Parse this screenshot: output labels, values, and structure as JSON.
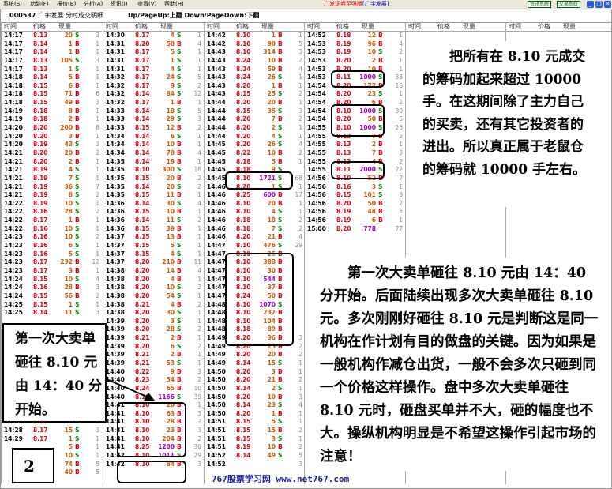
{
  "menu": [
    "系统(S)",
    "功能(F)",
    "报价(B)",
    "分析(A)",
    "资讯(I)",
    "查看(V)",
    "帮助(H)"
  ],
  "app_title": "广发证券至强版",
  "app_stock": "[广宇发展]",
  "sys_buttons": [
    "资讯系统",
    "交易系统"
  ],
  "window_buttons": {
    "minimize": "_",
    "restore": "❐",
    "close": "✕"
  },
  "title": {
    "code": "000537",
    "name": "广宇发展",
    "view": "分时成交明细",
    "hint": "Up/PageUp:上翻 Down/PageDown:下翻"
  },
  "column_headers": {
    "time": "时间",
    "price": "价格",
    "volume": "现量"
  },
  "colors": {
    "price": "#e00010",
    "buy": "#e00010",
    "sell": "#008800",
    "volume": "#d05800",
    "large_volume": "#9900cc"
  },
  "columns": [
    [
      [
        "14:17",
        "8.13",
        "20",
        "S",
        "3"
      ],
      [
        "14:17",
        "8.14",
        "1",
        "B",
        "1"
      ],
      [
        "14:17",
        "8.14",
        "1",
        "B",
        "1"
      ],
      [
        "14:17",
        "8.13",
        "105",
        "S",
        "3"
      ],
      [
        "14:17",
        "8.13",
        "1",
        "S",
        "1"
      ],
      [
        "14:18",
        "8.14",
        "5",
        "B",
        "1"
      ],
      [
        "14:18",
        "8.15",
        "6",
        "B",
        "1"
      ],
      [
        "14:18",
        "8.15",
        "71",
        "B",
        "6"
      ],
      [
        "14:18",
        "8.15",
        "49",
        "B",
        "3"
      ],
      [
        "14:19",
        "8.18",
        "8",
        "B",
        "1"
      ],
      [
        "14:19",
        "8.18",
        "2",
        "B",
        "1"
      ],
      [
        "14:20",
        "8.20",
        "200",
        "B",
        "8"
      ],
      [
        "14:20",
        "8.20",
        "3",
        "B",
        "1"
      ],
      [
        "14:20",
        "8.19",
        "43",
        "S",
        "3"
      ],
      [
        "14:21",
        "8.20",
        "20",
        "B",
        "2"
      ],
      [
        "14:21",
        "8.20",
        "2",
        "B",
        "1"
      ],
      [
        "14:21",
        "8.19",
        "4",
        "S",
        "1"
      ],
      [
        "14:21",
        "8.19",
        "7",
        "S",
        "1"
      ],
      [
        "14:21",
        "8.19",
        "36",
        "S",
        "7"
      ],
      [
        "14:21",
        "8.19",
        "8",
        "S",
        "2"
      ],
      [
        "14:22",
        "8.19",
        "10",
        "S",
        "1"
      ],
      [
        "14:22",
        "8.16",
        "28",
        "S",
        "2"
      ],
      [
        "14:22",
        "8.17",
        "1",
        "B",
        "1"
      ],
      [
        "14:22",
        "8.16",
        "10",
        "S",
        "1"
      ],
      [
        "14:23",
        "8.16",
        "10",
        "S",
        "2"
      ],
      [
        "14:23",
        "8.16",
        "6",
        "S",
        "1"
      ],
      [
        "14:23",
        "8.16",
        "5",
        "S",
        "1"
      ],
      [
        "14:23",
        "8.17",
        "232",
        "B",
        "12"
      ],
      [
        "14:23",
        "8.17",
        "3",
        "B",
        "1"
      ],
      [
        "14:24",
        "8.15",
        "10",
        "S",
        "4"
      ],
      [
        "14:24",
        "8.16",
        "28",
        "B",
        "3"
      ],
      [
        "14:24",
        "8.15",
        "56",
        "B",
        "2"
      ],
      [
        "14:25",
        "8.15",
        "1",
        "S",
        "1"
      ],
      [
        "14:25",
        "8.14",
        "11",
        "S",
        "3"
      ],
      null,
      null,
      null,
      null,
      null,
      null,
      null,
      null,
      null,
      null,
      null,
      null,
      [
        "14:28",
        "8.17",
        "4",
        "S",
        "2"
      ],
      [
        "14:28",
        "8.17",
        "15",
        "S",
        "3"
      ],
      [
        "14:29",
        "8.17",
        "1",
        "S",
        "1"
      ],
      [
        "",
        "",
        "5",
        "B",
        "1"
      ],
      [
        "",
        "",
        "10",
        "S",
        "1"
      ],
      [
        "",
        "",
        "74",
        "B",
        "5"
      ],
      [
        "",
        "",
        "40",
        "B",
        "5"
      ]
    ],
    [
      [
        "14:30",
        "8.17",
        "4",
        "S",
        "1"
      ],
      [
        "14:31",
        "8.20",
        "50",
        "B",
        "4"
      ],
      [
        "14:31",
        "8.17",
        "5",
        "S",
        "1"
      ],
      [
        "14:31",
        "8.17",
        "1",
        "S",
        "1"
      ],
      [
        "14:31",
        "8.17",
        "4",
        "S",
        "1"
      ],
      [
        "14:32",
        "8.17",
        "24",
        "S",
        "5"
      ],
      [
        "14:32",
        "8.17",
        "9",
        "S",
        "2"
      ],
      [
        "14:32",
        "8.14",
        "84",
        "S",
        "12"
      ],
      [
        "14:32",
        "8.17",
        "1",
        "B",
        "1"
      ],
      [
        "14:33",
        "8.14",
        "18",
        "S",
        "5"
      ],
      [
        "14:33",
        "8.14",
        "29",
        "S",
        "3"
      ],
      [
        "14:33",
        "8.15",
        "12",
        "B",
        "2"
      ],
      [
        "14:34",
        "8.14",
        "6",
        "S",
        "1"
      ],
      [
        "14:34",
        "8.14",
        "10",
        "B",
        "1"
      ],
      [
        "14:34",
        "8.14",
        "78",
        "B",
        "4"
      ],
      [
        "14:35",
        "8.14",
        "19",
        "B",
        "1"
      ],
      [
        "14:35",
        "8.10",
        "300",
        "S",
        "18"
      ],
      [
        "14:35",
        "8.15",
        "20",
        "B",
        "2"
      ],
      [
        "14:35",
        "8.14",
        "20",
        "S",
        "2"
      ],
      [
        "14:35",
        "8.15",
        "11",
        "B",
        "1"
      ],
      [
        "14:36",
        "8.14",
        "30",
        "S",
        "4"
      ],
      [
        "14:36",
        "8.15",
        "10",
        "B",
        "1"
      ],
      [
        "14:36",
        "8.14",
        "11",
        "S",
        "2"
      ],
      [
        "14:36",
        "8.15",
        "39",
        "B",
        "1"
      ],
      [
        "14:37",
        "8.15",
        "13",
        "B",
        "1"
      ],
      [
        "14:37",
        "8.15",
        "5",
        "S",
        "1"
      ],
      [
        "14:37",
        "8.15",
        "4",
        "S",
        "1"
      ],
      [
        "14:37",
        "8.20",
        "210",
        "B",
        "11"
      ],
      [
        "14:38",
        "8.20",
        "14",
        "B",
        "4"
      ],
      [
        "14:38",
        "8.20",
        "4",
        "B",
        "1"
      ],
      [
        "14:38",
        "8.20",
        "10",
        "S",
        "2"
      ],
      [
        "14:38",
        "8.20",
        "54",
        "S",
        "1"
      ],
      [
        "14:38",
        "8.21",
        "4",
        "B",
        "2"
      ],
      [
        "14:38",
        "8.20",
        "30",
        "S",
        "1"
      ],
      [
        "14:39",
        "8.20",
        "3",
        "S",
        "1"
      ],
      [
        "14:39",
        "8.20",
        "28",
        "S",
        "2"
      ],
      [
        "14:39",
        "8.21",
        "2",
        "B",
        "1"
      ],
      [
        "14:39",
        "8.20",
        "6",
        "S",
        "2"
      ],
      [
        "14:39",
        "8.21",
        "2",
        "B",
        "1"
      ],
      [
        "14:39",
        "8.21",
        "53",
        "S",
        "1"
      ],
      [
        "14:40",
        "8.22",
        "9",
        "B",
        "3"
      ],
      [
        "14:40",
        "8.23",
        "54",
        "B",
        "2"
      ],
      [
        "14:40",
        "8.24",
        "65",
        "B",
        "10"
      ],
      [
        "14:40",
        "8.10",
        "1166",
        "S",
        "39"
      ],
      [
        "14:41",
        "8.10",
        "20",
        "B",
        "1"
      ],
      [
        "14:41",
        "8.10",
        "63",
        "B",
        "3"
      ],
      [
        "14:41",
        "8.10",
        "28",
        "B",
        "2"
      ],
      [
        "14:41",
        "8.10",
        "23",
        "B",
        "3"
      ],
      [
        "14:41",
        "8.10",
        "204",
        "B",
        "2"
      ],
      [
        "14:41",
        "8.25",
        "1200",
        "B",
        "30"
      ],
      [
        "14:42",
        "8.10",
        "1011",
        "S",
        "29"
      ],
      [
        "14:42",
        "8.10",
        "84",
        "B",
        "3"
      ]
    ],
    [
      [
        "14:42",
        "8.10",
        "1",
        "B",
        "1"
      ],
      [
        "14:42",
        "8.10",
        "90",
        "B",
        "5"
      ],
      [
        "14:43",
        "8.10",
        "314",
        "B",
        "3"
      ],
      [
        "14:43",
        "8.24",
        "10",
        "B",
        "2"
      ],
      [
        "14:43",
        "8.24",
        "59",
        "B",
        "4"
      ],
      [
        "14:43",
        "8.24",
        "26",
        "S",
        "1"
      ],
      [
        "14:43",
        "8.20",
        "1",
        "B",
        "1"
      ],
      [
        "14:43",
        "8.15",
        "25",
        "S",
        "2"
      ],
      [
        "14:44",
        "8.20",
        "20",
        "B",
        "1"
      ],
      [
        "14:44",
        "8.15",
        "35",
        "S",
        "3"
      ],
      [
        "14:44",
        "8.20",
        "7",
        "B",
        "2"
      ],
      [
        "14:44",
        "8.20",
        "2",
        "S",
        "1"
      ],
      [
        "14:44",
        "8.20",
        "4",
        "S",
        "1"
      ],
      [
        "14:45",
        "8.20",
        "26",
        "S",
        "4"
      ],
      [
        "14:45",
        "8.22",
        "10",
        "B",
        "2"
      ],
      [
        "14:45",
        "8.18",
        "5",
        "B",
        "1"
      ],
      [
        "14:45",
        "8.18",
        "9",
        "S",
        ""
      ],
      [
        "14:45",
        "8.10",
        "1721",
        "S",
        "68"
      ],
      [
        "14:46",
        "8.20",
        "1",
        "S",
        "1"
      ],
      [
        "14:46",
        "8.25",
        "600",
        "B",
        "17"
      ],
      [
        "14:46",
        "8.10",
        "20",
        "B",
        "1"
      ],
      [
        "14:46",
        "8.10",
        "4",
        "S",
        "1"
      ],
      [
        "14:46",
        "8.18",
        "18",
        "S",
        "2"
      ],
      [
        "14:46",
        "8.18",
        "7",
        "S",
        "2"
      ],
      [
        "14:46",
        "8.20",
        "21",
        "B",
        "4"
      ],
      [
        "14:47",
        "8.10",
        "476",
        "S",
        "29"
      ],
      [
        "14:47",
        "8.10",
        "25",
        "B",
        ""
      ],
      [
        "14:47",
        "8.10",
        "388",
        "B",
        ""
      ],
      [
        "14:47",
        "8.10",
        "30",
        "B",
        ""
      ],
      [
        "14:47",
        "8.10",
        "544",
        "B",
        ""
      ],
      [
        "14:47",
        "8.10",
        "37",
        "B",
        ""
      ],
      [
        "14:47",
        "8.24",
        "50",
        "B",
        ""
      ],
      [
        "14:48",
        "8.10",
        "1070",
        "S",
        ""
      ],
      [
        "14:48",
        "8.10",
        "237",
        "B",
        ""
      ],
      [
        "14:48",
        "8.10",
        "104",
        "B",
        ""
      ],
      [
        "14:48",
        "8.18",
        "89",
        "B",
        ""
      ],
      [
        "14:49",
        "8.20",
        "36",
        "B",
        "3"
      ],
      [
        "14:49",
        "8.20",
        "25",
        "B",
        "2"
      ],
      [
        "14:49",
        "8.20",
        "20",
        "B",
        "2"
      ],
      [
        "14:49",
        "8.14",
        "15",
        "S",
        "1"
      ],
      [
        "14:50",
        "8.20",
        "3",
        "B",
        "1"
      ],
      [
        "14:50",
        "8.20",
        "21",
        "B",
        "2"
      ],
      [
        "14:50",
        "8.14",
        "2",
        "S",
        "1"
      ],
      [
        "14:50",
        "8.20",
        "10",
        "B",
        "3"
      ],
      [
        "14:50",
        "8.14",
        "23",
        "S",
        "4"
      ],
      [
        "14:50",
        "8.20",
        "1",
        "B",
        "1"
      ],
      [
        "14:51",
        "8.15",
        "5",
        "S",
        "1"
      ],
      [
        "14:51",
        "8.15",
        "15",
        "B",
        "2"
      ],
      [
        "14:51",
        "8.15",
        "3",
        "S",
        "1"
      ],
      [
        "14:51",
        "8.19",
        "10",
        "B",
        "2"
      ],
      [
        "14:52",
        "8.14",
        "49",
        "S",
        "5"
      ],
      [
        "14:52",
        "",
        "",
        "",
        "3"
      ]
    ],
    [
      [
        "14:52",
        "8.18",
        "12",
        "B",
        "1"
      ],
      [
        "14:53",
        "8.19",
        "96",
        "B",
        "4"
      ],
      [
        "14:53",
        "8.19",
        "10",
        "S",
        "2"
      ],
      [
        "14:53",
        "8.20",
        "2",
        "B",
        "1"
      ],
      [
        "14:53",
        "8.20",
        "10",
        "B",
        "1"
      ],
      [
        "14:53",
        "8.11",
        "1000",
        "S",
        "33"
      ],
      [
        "14:54",
        "8.20",
        "177",
        "B",
        "16"
      ],
      [
        "14:54",
        "8.20",
        "23",
        "S",
        "1"
      ],
      [
        "14:54",
        "8.20",
        "6",
        "B",
        "2"
      ],
      [
        "14:54",
        "8.10",
        "1000",
        "S",
        "30"
      ],
      [
        "14:54",
        "8.20",
        "50",
        "B",
        "5"
      ],
      [
        "14:55",
        "8.10",
        "1000",
        "S",
        "26"
      ],
      [
        "14:55",
        "8.13",
        "7",
        "B",
        "2"
      ],
      [
        "14:55",
        "8.13",
        "2",
        "B",
        "1"
      ],
      [
        "14:55",
        "8.13",
        "7",
        "B",
        "3"
      ],
      [
        "14:55",
        "8.13",
        "4",
        "B",
        "2"
      ],
      [
        "14:55",
        "8.11",
        "2000",
        "S",
        "22"
      ],
      [
        "14:56",
        "8.19",
        "52",
        "B",
        "7"
      ],
      [
        "14:56",
        "8.16",
        "3",
        "S",
        "1"
      ],
      [
        "14:56",
        "8.15",
        "101",
        "S",
        "8"
      ],
      [
        "14:56",
        "8.20",
        "50",
        "B",
        "7"
      ],
      [
        "14:56",
        "8.19",
        "48",
        "B",
        "8"
      ],
      [
        "14:56",
        "8.19",
        "6",
        "B",
        "1"
      ],
      [
        "15:00",
        "8.20",
        "778",
        "",
        "77"
      ]
    ],
    [],
    []
  ],
  "annotations": {
    "callout": "第一次大卖单砸往 8.10 元由 14：40 分开始。",
    "page_number": "2",
    "note1": "把所有在 8.10 元成交的筹码加起来超过 10000 手。在这期间除了主力自己的买卖，还有其它投资者的进出。所以真正属于老鼠仓的筹码就 10000 手左右。",
    "note2": "第一次大卖单砸往 8.10 元由 14：40 分开始。后面陆续出现多次大卖单砸往 8.10 元。多次刚刚好砸往 8.10 元是判断这是同一机构在作计划有目的做盘的关键。因为如果是一般机构作减仓出货，一般不会多次只砸到同一个价格这样操作。盘中多次大卖单砸往 8.10 元时，砸盘买单并不大，砸的幅度也不大。操纵机构明显是不希望这操作引起市场的注意！"
  },
  "footer": "767股票学习网 www.net767.com"
}
